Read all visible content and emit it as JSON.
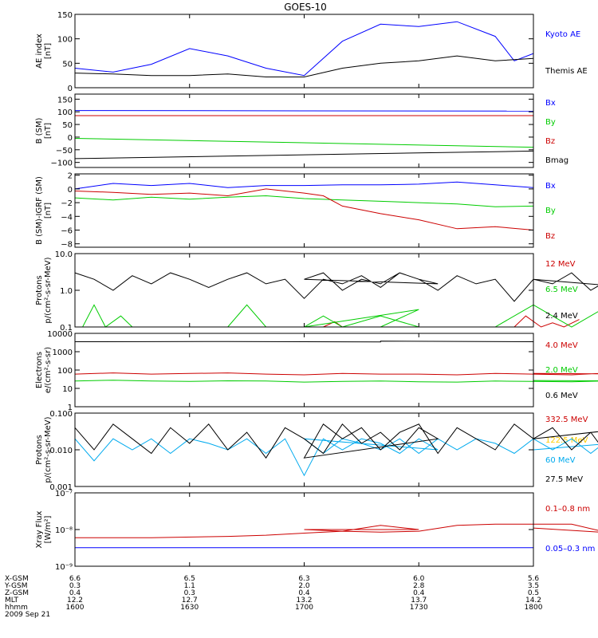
{
  "chart_data": {
    "type": "line",
    "title": "GOES-10",
    "panels": [
      {
        "ylabel_lines": [
          "AE index",
          "[nT]"
        ],
        "scale": "linear",
        "ylim": [
          0,
          150
        ],
        "ticks": [
          0,
          50,
          100,
          150
        ],
        "tick_labels": [
          "0",
          "50",
          "100",
          "150"
        ],
        "series": [
          {
            "name": "Kyoto AE",
            "color": "#0000ff",
            "x": [
              1600,
              1610,
              1620,
              1630,
              1640,
              1650,
              1700,
              1710,
              1720,
              1730,
              1740,
              1750,
              1755,
              1800
            ],
            "y": [
              40,
              32,
              48,
              80,
              65,
              40,
              25,
              95,
              130,
              125,
              135,
              105,
              55,
              70
            ]
          },
          {
            "name": "Themis AE",
            "color": "#000000",
            "x": [
              1600,
              1610,
              1620,
              1630,
              1640,
              1650,
              1700,
              1710,
              1720,
              1730,
              1740,
              1750,
              1800
            ],
            "y": [
              30,
              28,
              25,
              25,
              28,
              22,
              22,
              40,
              50,
              55,
              65,
              55,
              60
            ]
          }
        ]
      },
      {
        "ylabel_lines": [
          "B (SM)",
          "[nT]"
        ],
        "scale": "linear",
        "ylim": [
          -120,
          170
        ],
        "ticks": [
          -100,
          -50,
          0,
          50,
          100,
          150
        ],
        "tick_labels": [
          "−100",
          "−50",
          "0",
          "50",
          "100",
          "150"
        ],
        "series": [
          {
            "name": "Bx",
            "color": "#0000ff",
            "x": [
              1600,
              1800
            ],
            "y": [
              105,
              103
            ]
          },
          {
            "name": "By",
            "color": "#00cc00",
            "x": [
              1600,
              1800
            ],
            "y": [
              -5,
              -40
            ]
          },
          {
            "name": "Bz",
            "color": "#cc0000",
            "x": [
              1600,
              1800
            ],
            "y": [
              85,
              85
            ]
          },
          {
            "name": "Bmag",
            "color": "#000000",
            "x": [
              1600,
              1800
            ],
            "y": [
              -85,
              -55
            ]
          }
        ]
      },
      {
        "ylabel_lines": [
          "B (SM)-IGRF (SM)",
          "[nT]"
        ],
        "scale": "linear",
        "ylim": [
          -8.5,
          2.2
        ],
        "ticks": [
          -8,
          -6,
          -4,
          -2,
          0,
          2
        ],
        "tick_labels": [
          "−8",
          "−6",
          "−4",
          "−2",
          "0",
          "2"
        ],
        "series": [
          {
            "name": "Bx",
            "color": "#0000ff",
            "x": [
              1600,
              1610,
              1620,
              1630,
              1640,
              1650,
              1700,
              1710,
              1720,
              1730,
              1740,
              1750,
              1800
            ],
            "y": [
              0,
              0.8,
              0.5,
              0.8,
              0.2,
              0.5,
              0.5,
              0.6,
              0.6,
              0.7,
              1.0,
              0.6,
              0.2
            ]
          },
          {
            "name": "By",
            "color": "#00cc00",
            "x": [
              1600,
              1610,
              1620,
              1630,
              1640,
              1650,
              1700,
              1710,
              1720,
              1730,
              1740,
              1750,
              1800
            ],
            "y": [
              -1.3,
              -1.6,
              -1.2,
              -1.5,
              -1.2,
              -1.0,
              -1.4,
              -1.6,
              -1.8,
              -2.0,
              -2.2,
              -2.6,
              -2.5
            ]
          },
          {
            "name": "Bz",
            "color": "#cc0000",
            "x": [
              1600,
              1610,
              1620,
              1630,
              1640,
              1650,
              1700,
              1705,
              1710,
              1720,
              1730,
              1740,
              1750,
              1800
            ],
            "y": [
              -0.3,
              -0.5,
              -0.8,
              -0.6,
              -1.0,
              0,
              -0.6,
              -1.0,
              -2.5,
              -3.6,
              -4.5,
              -5.8,
              -5.5,
              -6.0
            ]
          }
        ]
      },
      {
        "ylabel_lines": [
          "Protons",
          "p/(cm²-s-sr-MeV)"
        ],
        "scale": "log",
        "ylim": [
          0.1,
          10
        ],
        "ticks": [
          0.1,
          1,
          10
        ],
        "tick_labels": [
          "0.1",
          "1.0",
          "10.0"
        ],
        "series": [
          {
            "name": "12 MeV",
            "color": "#cc0000",
            "x": [
              1665,
              1668,
              1670,
              1755,
              1758,
              1762,
              1765,
              1768,
              1772
            ],
            "y": [
              0.1,
              0.14,
              0.1,
              0.1,
              0.2,
              0.1,
              0.13,
              0.1,
              0.16
            ]
          },
          {
            "name": "6.5 MeV",
            "color": "#00cc00",
            "x": [
              1602,
              1605,
              1608,
              1612,
              1615,
              1620,
              1630,
              1640,
              1645,
              1650,
              1660,
              1665,
              1670,
              1680,
              1690,
              1700,
              1710,
              1720,
              1730,
              1740,
              1750,
              1760,
              1770,
              1780
            ],
            "y": [
              0.1,
              0.4,
              0.1,
              0.2,
              0.1,
              0.1,
              0.1,
              0.1,
              0.4,
              0.1,
              0.1,
              0.2,
              0.1,
              0.1,
              0.3,
              0.1,
              0.1,
              0.2,
              0.1,
              0.1,
              0.1,
              0.4,
              0.1,
              0.4
            ]
          },
          {
            "name": "2.4 MeV",
            "color": "#000000",
            "x": [
              1600,
              1605,
              1610,
              1615,
              1620,
              1625,
              1630,
              1635,
              1640,
              1645,
              1650,
              1655,
              1660,
              1665,
              1670,
              1675,
              1680,
              1685,
              1690,
              1695,
              1700,
              1705,
              1710,
              1715,
              1720,
              1725,
              1730,
              1735,
              1740,
              1745,
              1750,
              1755,
              1760,
              1765,
              1770,
              1775,
              1780,
              1785,
              1790,
              1795,
              1800
            ],
            "y": [
              3,
              2,
              1,
              2.5,
              1.5,
              3,
              2,
              1.2,
              2,
              3,
              1.5,
              2,
              0.6,
              2,
              1.5,
              2.5,
              1.2,
              3,
              2,
              1.5,
              2,
              3,
              1,
              2,
              1.5,
              3,
              2,
              1,
              2.5,
              1.5,
              2,
              0.5,
              2,
              1.5,
              3,
              1,
              2,
              1.5,
              2.5,
              1,
              2
            ]
          }
        ]
      },
      {
        "ylabel_lines": [
          "Electrons",
          "e/(cm²-s-sr)"
        ],
        "scale": "log",
        "ylim": [
          1,
          10000
        ],
        "ticks": [
          1,
          10,
          100,
          1000,
          10000
        ],
        "tick_labels": [
          "1",
          "10",
          "100",
          "1000",
          "10000"
        ],
        "series": [
          {
            "name": "4.0 MeV",
            "color": "#cc0000",
            "x": [
              1600,
              1610,
              1620,
              1630,
              1640,
              1650,
              1700,
              1710,
              1720,
              1730,
              1740,
              1750,
              1760,
              1770,
              1780,
              1790,
              1800
            ],
            "y": [
              60,
              70,
              60,
              65,
              70,
              60,
              55,
              65,
              60,
              60,
              55,
              65,
              60,
              55,
              70,
              60,
              65
            ]
          },
          {
            "name": "2.0 MeV",
            "color": "#00cc00",
            "x": [
              1600,
              1610,
              1620,
              1630,
              1640,
              1650,
              1700,
              1710,
              1720,
              1730,
              1740,
              1750,
              1760,
              1770,
              1780,
              1790,
              1800
            ],
            "y": [
              25,
              28,
              25,
              24,
              26,
              25,
              22,
              24,
              25,
              23,
              22,
              25,
              24,
              23,
              26,
              25,
              27
            ]
          },
          {
            "name": "0.6 MeV",
            "color": "#000000",
            "x": [
              1600,
              1640,
              1680,
              1720,
              1760,
              1800
            ],
            "y": [
              3500,
              3600,
              3400,
              3800,
              3500,
              3200
            ]
          }
        ]
      },
      {
        "ylabel_lines": [
          "Protons",
          "p/(cm²-s-sr-MeV)"
        ],
        "scale": "log",
        "ylim": [
          0.001,
          0.1
        ],
        "ticks": [
          0.001,
          0.01,
          0.1
        ],
        "tick_labels": [
          "0.001",
          "0.010",
          "0.100"
        ],
        "series": [
          {
            "name": "332.5 MeV",
            "color": "#cc0000",
            "x": [],
            "y": []
          },
          {
            "name": "122.5 MeV",
            "color": "#ffcc00",
            "x": [],
            "y": []
          },
          {
            "name": "60 MeV",
            "color": "#00aaee",
            "x": [
              1600,
              1605,
              1610,
              1615,
              1620,
              1625,
              1630,
              1635,
              1640,
              1645,
              1650,
              1655,
              1660,
              1665,
              1670,
              1675,
              1680,
              1685,
              1690,
              1695,
              1700,
              1705,
              1710,
              1715,
              1720,
              1725,
              1730,
              1735,
              1740,
              1745,
              1750,
              1755,
              1760,
              1765,
              1770,
              1775,
              1780,
              1785,
              1790,
              1795,
              1800
            ],
            "y": [
              0.02,
              0.005,
              0.02,
              0.01,
              0.02,
              0.008,
              0.02,
              0.015,
              0.01,
              0.02,
              0.008,
              0.02,
              0.002,
              0.02,
              0.01,
              0.02,
              0.015,
              0.008,
              0.02,
              0.01,
              0.02,
              0.008,
              0.02,
              0.015,
              0.01,
              0.02,
              0.008,
              0.02,
              0.01,
              0.02,
              0.015,
              0.008,
              0.02,
              0.01,
              0.02,
              0.008,
              0.02,
              0.015,
              0.01,
              0.02,
              0.01
            ]
          },
          {
            "name": "27.5 MeV",
            "color": "#000000",
            "x": [
              1600,
              1605,
              1610,
              1615,
              1620,
              1625,
              1630,
              1635,
              1640,
              1645,
              1650,
              1655,
              1660,
              1665,
              1670,
              1675,
              1680,
              1685,
              1690,
              1695,
              1700,
              1705,
              1710,
              1715,
              1720,
              1725,
              1730,
              1735,
              1740,
              1745,
              1750,
              1755,
              1760,
              1765,
              1770,
              1775,
              1780,
              1785,
              1790,
              1795,
              1800
            ],
            "y": [
              0.04,
              0.01,
              0.05,
              0.02,
              0.008,
              0.04,
              0.015,
              0.05,
              0.01,
              0.03,
              0.006,
              0.04,
              0.02,
              0.008,
              0.05,
              0.015,
              0.03,
              0.01,
              0.04,
              0.02,
              0.006,
              0.05,
              0.02,
              0.04,
              0.01,
              0.03,
              0.05,
              0.008,
              0.04,
              0.02,
              0.01,
              0.05,
              0.02,
              0.04,
              0.01,
              0.03,
              0.006,
              0.04,
              0.02,
              0.05,
              0.02
            ]
          }
        ]
      },
      {
        "ylabel_lines": [
          "Xray Flux",
          "[W/m²]"
        ],
        "scale": "log",
        "ylim": [
          1e-09,
          1e-07
        ],
        "ticks": [
          1e-09,
          1e-08,
          1e-07
        ],
        "tick_labels": [
          "10⁻⁹",
          "10⁻⁸",
          "10⁻⁷"
        ],
        "series": [
          {
            "name": "0.1–0.8 nm",
            "color": "#cc0000",
            "x": [
              1600,
              1620,
              1640,
              1650,
              1660,
              1670,
              1680,
              1690,
              1700,
              1710,
              1720,
              1730,
              1740,
              1750,
              1760,
              1770,
              1780,
              1790,
              1800
            ],
            "y": [
              6e-09,
              6e-09,
              6.5e-09,
              7e-09,
              8e-09,
              9e-09,
              1.3e-08,
              1e-08,
              1e-08,
              9e-09,
              8.5e-09,
              9e-09,
              1.3e-08,
              1.4e-08,
              1.4e-08,
              1.4e-08,
              8e-09,
              7e-09,
              1.1e-08
            ]
          },
          {
            "name": "0.05–0.3 nm",
            "color": "#0000ff",
            "x": [
              1600,
              1800
            ],
            "y": [
              3.2e-09,
              3.2e-09
            ]
          }
        ]
      }
    ],
    "x_ticks": [
      1600,
      1630,
      1700,
      1730,
      1800
    ],
    "ephemeris": [
      {
        "label": "X-GSM",
        "values": [
          "6.6",
          "6.5",
          "6.3",
          "6.0",
          "5.6"
        ]
      },
      {
        "label": "Y-GSM",
        "values": [
          "0.3",
          "1.1",
          "2.0",
          "2.8",
          "3.5"
        ]
      },
      {
        "label": "Z-GSM",
        "values": [
          "0.4",
          "0.3",
          "0.4",
          "0.4",
          "0.5"
        ]
      },
      {
        "label": "MLT",
        "values": [
          "12.2",
          "12.7",
          "13.2",
          "13.7",
          "14.2"
        ]
      },
      {
        "label": "hhmm",
        "values": [
          "1600",
          "1630",
          "1700",
          "1730",
          "1800"
        ]
      }
    ],
    "date_label": "2009 Sep 21"
  }
}
